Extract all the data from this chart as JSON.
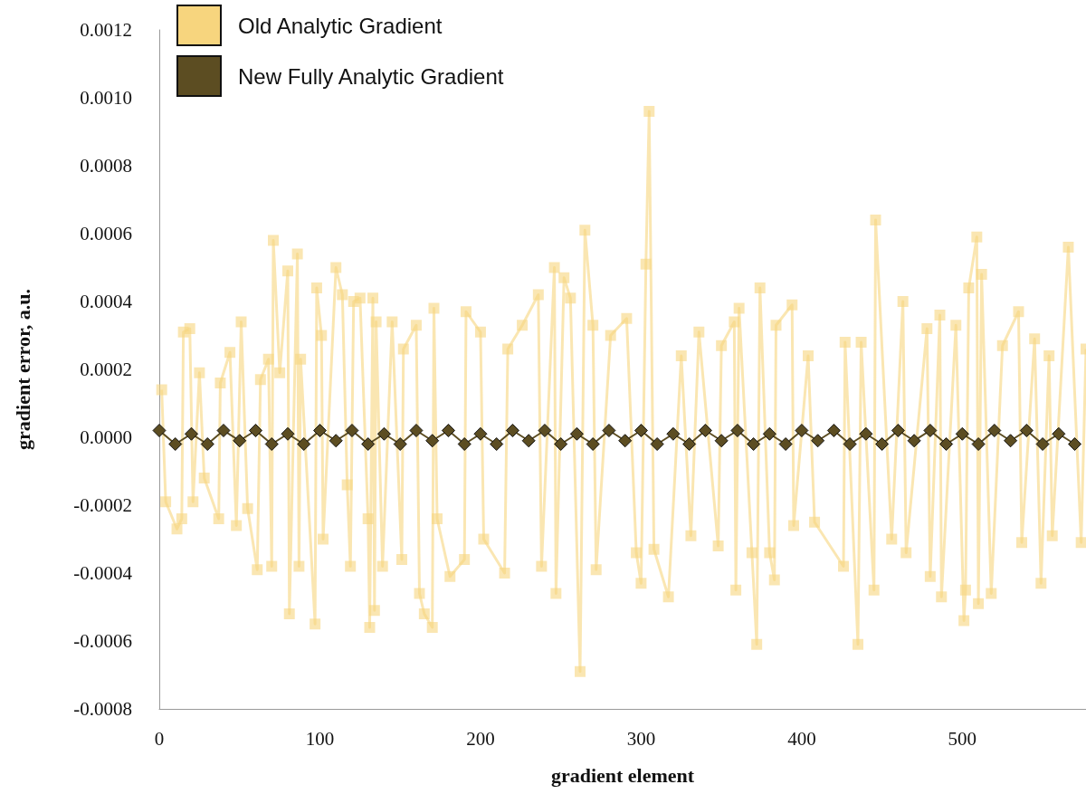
{
  "chart_data": {
    "type": "line",
    "xlabel": "gradient element",
    "ylabel": "gradient error, a.u.",
    "xlim": [
      0,
      577
    ],
    "xticks": [
      0,
      100,
      200,
      300,
      400,
      500
    ],
    "ylim": [
      -0.0008,
      0.0012
    ],
    "yticks": [
      {
        "value": -0.0008,
        "label": "-0.0008"
      },
      {
        "value": -0.0006,
        "label": "-0.0006"
      },
      {
        "value": -0.0004,
        "label": "-0.0004"
      },
      {
        "value": -0.0002,
        "label": "-0.0002"
      },
      {
        "value": 0,
        "label": "0.0000"
      },
      {
        "value": 0.0002,
        "label": "0.0002"
      },
      {
        "value": 0.0004,
        "label": "0.0004"
      },
      {
        "value": 0.0006,
        "label": "0.0006"
      },
      {
        "value": 0.0008,
        "label": "0.0008"
      },
      {
        "value": 0.001,
        "label": "0.0010"
      },
      {
        "value": 0.0012,
        "label": "0.0012"
      }
    ],
    "grid": false,
    "legend": "top left",
    "series": [
      {
        "name": "Old Analytic Gradient",
        "color": "#f7d57e",
        "marker": "square",
        "x": [
          1.5,
          4,
          11,
          14,
          15,
          19,
          21,
          25,
          28,
          37,
          38,
          44,
          48,
          51,
          55,
          61,
          63,
          68,
          70,
          71,
          75,
          80,
          81,
          86,
          87,
          88,
          97,
          98,
          101,
          102,
          110,
          114,
          117,
          119,
          121,
          125,
          130,
          131,
          133,
          134,
          135,
          139,
          145,
          151,
          152,
          160,
          162,
          165,
          170,
          171,
          173,
          181,
          190,
          191,
          200,
          202,
          215,
          217,
          226,
          236,
          238,
          246,
          247,
          252,
          256,
          262,
          265,
          270,
          272,
          281,
          291,
          297,
          300,
          303,
          305,
          308,
          317,
          325,
          331,
          336,
          348,
          350,
          358,
          359,
          361,
          369,
          372,
          374,
          380,
          383,
          384,
          394,
          395,
          404,
          408,
          426,
          427,
          435,
          437,
          445,
          446,
          456,
          463,
          465,
          478,
          480,
          486,
          487,
          496,
          501,
          502,
          504,
          509,
          510,
          512,
          518,
          525,
          535,
          537,
          545,
          549,
          554,
          556,
          566,
          574,
          577
        ],
        "values": [
          0.00014,
          -0.00019,
          -0.00027,
          -0.00024,
          0.00031,
          0.00032,
          -0.00019,
          0.00019,
          -0.00012,
          -0.00024,
          0.00016,
          0.00025,
          -0.00026,
          0.00034,
          -0.00021,
          -0.00039,
          0.00017,
          0.00023,
          -0.00038,
          0.00058,
          0.00019,
          0.00049,
          -0.00052,
          0.00054,
          -0.00038,
          0.00023,
          -0.00055,
          0.00044,
          0.0003,
          -0.0003,
          0.0005,
          0.00042,
          -0.00014,
          -0.00038,
          0.0004,
          0.00041,
          -0.00024,
          -0.00056,
          0.00041,
          -0.00051,
          0.00034,
          -0.00038,
          0.00034,
          -0.00036,
          0.00026,
          0.00033,
          -0.00046,
          -0.00052,
          -0.00056,
          0.00038,
          -0.00024,
          -0.00041,
          -0.00036,
          0.00037,
          0.00031,
          -0.0003,
          -0.0004,
          0.00026,
          0.00033,
          0.00042,
          -0.00038,
          0.0005,
          -0.00046,
          0.00047,
          0.00041,
          -0.00069,
          0.00061,
          0.00033,
          -0.00039,
          0.0003,
          0.00035,
          -0.00034,
          -0.00043,
          0.00051,
          0.00096,
          -0.00033,
          -0.00047,
          0.00024,
          -0.00029,
          0.00031,
          -0.00032,
          0.00027,
          0.00034,
          -0.00045,
          0.00038,
          -0.00034,
          -0.00061,
          0.00044,
          -0.00034,
          -0.00042,
          0.00033,
          0.00039,
          -0.00026,
          0.00024,
          -0.00025,
          -0.00038,
          0.00028,
          -0.00061,
          0.00028,
          -0.00045,
          0.00064,
          -0.0003,
          0.0004,
          -0.00034,
          0.00032,
          -0.00041,
          0.00036,
          -0.00047,
          0.00033,
          -0.00054,
          -0.00045,
          0.00044,
          0.00059,
          -0.00049,
          0.00048,
          -0.00046,
          0.00027,
          0.00037,
          -0.00031,
          0.00029,
          -0.00043,
          0.00024,
          -0.00029,
          0.00056,
          -0.00031,
          0.00026
        ]
      },
      {
        "name": "New Fully Analytic Gradient",
        "color": "#5c4d22",
        "marker": "diamond",
        "x": [
          0,
          10,
          20,
          30,
          40,
          50,
          60,
          70,
          80,
          90,
          100,
          110,
          120,
          130,
          140,
          150,
          160,
          170,
          180,
          190,
          200,
          210,
          220,
          230,
          240,
          250,
          260,
          270,
          280,
          290,
          300,
          310,
          320,
          330,
          340,
          350,
          360,
          370,
          380,
          390,
          400,
          410,
          420,
          430,
          440,
          450,
          460,
          470,
          480,
          490,
          500,
          510,
          520,
          530,
          540,
          550,
          560,
          570
        ],
        "values": [
          2e-05,
          -2e-05,
          1e-05,
          -2e-05,
          2e-05,
          -1e-05,
          2e-05,
          -2e-05,
          1e-05,
          -2e-05,
          2e-05,
          -1e-05,
          2e-05,
          -2e-05,
          1e-05,
          -2e-05,
          2e-05,
          -1e-05,
          2e-05,
          -2e-05,
          1e-05,
          -2e-05,
          2e-05,
          -1e-05,
          2e-05,
          -2e-05,
          1e-05,
          -2e-05,
          2e-05,
          -1e-05,
          2e-05,
          -2e-05,
          1e-05,
          -2e-05,
          2e-05,
          -1e-05,
          2e-05,
          -2e-05,
          1e-05,
          -2e-05,
          2e-05,
          -1e-05,
          2e-05,
          -2e-05,
          1e-05,
          -2e-05,
          2e-05,
          -1e-05,
          2e-05,
          -2e-05,
          1e-05,
          -2e-05,
          2e-05,
          -1e-05,
          2e-05,
          -2e-05,
          1e-05,
          -2e-05
        ]
      }
    ]
  }
}
